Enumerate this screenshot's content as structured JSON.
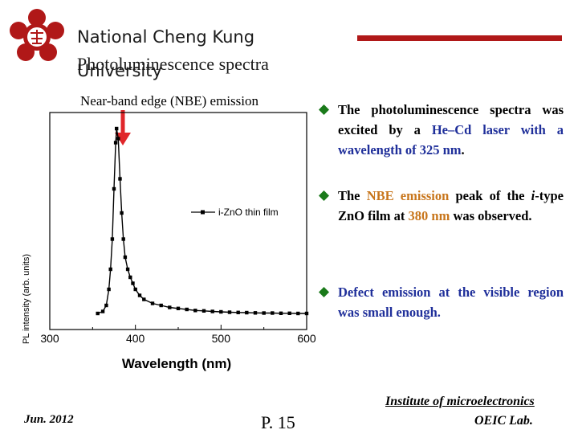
{
  "header": {
    "university_line1": "National Cheng Kung",
    "university_line2": "University",
    "slide_title": "Photoluminescence spectra",
    "accent_color": "#b01818"
  },
  "figure": {
    "annotation": "Near-band edge (NBE) emission",
    "arrow_color": "#e0262a"
  },
  "chart_data": {
    "type": "line",
    "xlabel": "Wavelength (nm)",
    "ylabel": "PL intensity (arb. units)",
    "xlim": [
      300,
      600
    ],
    "x_ticks": [
      "300",
      "400",
      "500",
      "600"
    ],
    "grid": false,
    "legend_position": "center-right",
    "series": [
      {
        "name": "i-ZnO thin film",
        "x": [
          356,
          362,
          366,
          369,
          371,
          373,
          375,
          377,
          378,
          380,
          382,
          384,
          386,
          388,
          391,
          394,
          397,
          400,
          405,
          410,
          420,
          430,
          440,
          450,
          460,
          470,
          480,
          490,
          500,
          510,
          520,
          530,
          540,
          550,
          560,
          570,
          580,
          590,
          600
        ],
        "y": [
          0.08,
          0.09,
          0.12,
          0.2,
          0.3,
          0.45,
          0.7,
          0.93,
          1.0,
          0.95,
          0.75,
          0.58,
          0.45,
          0.36,
          0.3,
          0.26,
          0.23,
          0.2,
          0.17,
          0.15,
          0.13,
          0.12,
          0.11,
          0.105,
          0.1,
          0.095,
          0.093,
          0.09,
          0.088,
          0.086,
          0.085,
          0.084,
          0.083,
          0.082,
          0.082,
          0.081,
          0.081,
          0.08,
          0.08
        ]
      }
    ]
  },
  "bullets": {
    "b1": {
      "t1": "The photoluminescence spectra was excited by a ",
      "t2": "He–Cd laser with a wavelength of 325 nm",
      "t3": "."
    },
    "b2": {
      "t1": "The ",
      "t2": "NBE emission",
      "t3": " peak of the ",
      "t4": "i",
      "t5": "-type ZnO film at ",
      "t6": "380 nm",
      "t7": " was observed."
    },
    "b3": {
      "t1": "Defect emission at the visible region was small enough."
    },
    "bullet_color": "#1a7a1a"
  },
  "footer": {
    "institute": "Institute of microelectronics",
    "lab": "OEIC Lab.",
    "date": "Jun. 2012",
    "page": "P. 15"
  }
}
